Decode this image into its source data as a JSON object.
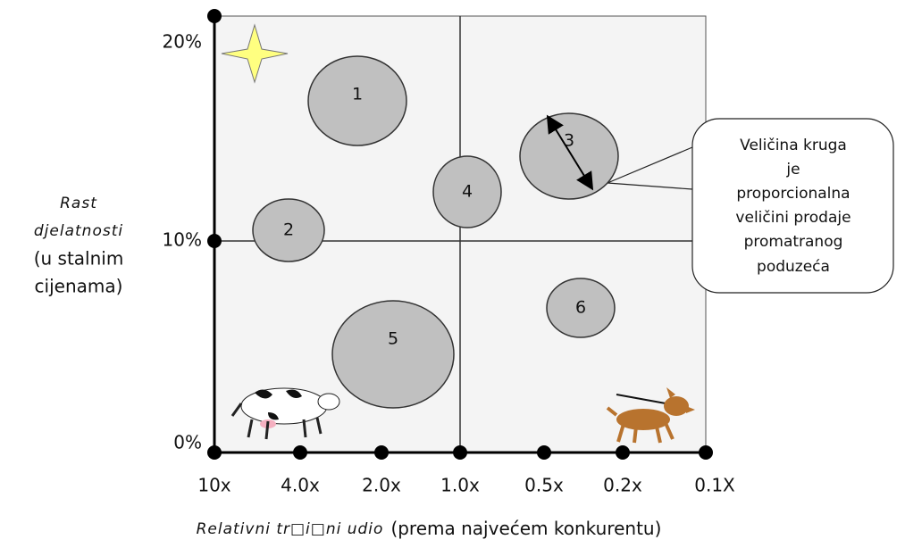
{
  "y_axis": {
    "title_lines": [
      "Rast",
      "djelatnosti",
      "(u stalnim",
      "cijenama)"
    ],
    "ticks": [
      "20%",
      "10%",
      "0%"
    ]
  },
  "x_axis": {
    "ticks": [
      "10x",
      "4.0x",
      "2.0x",
      "1.0x",
      "0.5x",
      "0.2x",
      "0.1X"
    ],
    "title_italic": "Relativni tr□i□ni udio",
    "title_rest": "(prema najvećem konkurentu)"
  },
  "bubbles": [
    "1",
    "2",
    "3",
    "4",
    "5",
    "6"
  ],
  "callout": {
    "lines": [
      "Veličina kruga",
      "je",
      "proporcionalna",
      "veličini prodaje",
      "promatranog",
      "poduzeća"
    ]
  }
}
